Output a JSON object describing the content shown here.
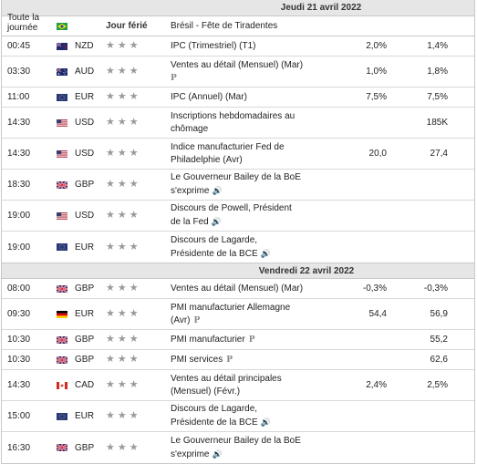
{
  "days": [
    {
      "date_label": "Jeudi 21 avril 2022",
      "all_day": {
        "time": "Toute la journée",
        "flag": "BR",
        "importance_label": "Jour férié",
        "event": "Brésil - Fête de Tiradentes"
      },
      "events": [
        {
          "time": "00:45",
          "flag": "NZ",
          "currency": "NZD",
          "event": [
            "IPC (Trimestriel) (T1)"
          ],
          "actual": "2,0%",
          "forecast": "1,4%",
          "previous": "",
          "badge": ""
        },
        {
          "time": "03:30",
          "flag": "AU",
          "currency": "AUD",
          "event": [
            "Ventes au détail (Mensuel) (Mar)"
          ],
          "actual": "1,0%",
          "forecast": "1,8%",
          "previous": "",
          "badge": "P"
        },
        {
          "time": "11:00",
          "flag": "EU",
          "currency": "EUR",
          "event": [
            "IPC (Annuel) (Mar)"
          ],
          "actual": "7,5%",
          "forecast": "7,5%",
          "previous": "",
          "badge": ""
        },
        {
          "time": "14:30",
          "flag": "US",
          "currency": "USD",
          "event": [
            "Inscriptions hebdomadaires au",
            "chômage"
          ],
          "actual": "",
          "forecast": "185K",
          "previous": "",
          "badge": ""
        },
        {
          "time": "14:30",
          "flag": "US",
          "currency": "USD",
          "event": [
            "Indice manufacturier Fed de",
            "Philadelphie (Avr)"
          ],
          "actual": "20,0",
          "forecast": "27,4",
          "previous": "",
          "badge": ""
        },
        {
          "time": "18:30",
          "flag": "GB",
          "currency": "GBP",
          "event": [
            "Le Gouverneur Bailey de la BoE",
            "s'exprime"
          ],
          "actual": "",
          "forecast": "",
          "previous": "",
          "badge": "speech"
        },
        {
          "time": "19:00",
          "flag": "US",
          "currency": "USD",
          "event": [
            "Discours de Powell, Président",
            "de la Fed"
          ],
          "actual": "",
          "forecast": "",
          "previous": "",
          "badge": "speech"
        },
        {
          "time": "19:00",
          "flag": "EU",
          "currency": "EUR",
          "event": [
            "Discours de Lagarde,",
            "Présidente de la BCE"
          ],
          "actual": "",
          "forecast": "",
          "previous": "",
          "badge": "speech"
        }
      ]
    },
    {
      "date_label": "Vendredi 22 avril 2022",
      "events": [
        {
          "time": "08:00",
          "flag": "GB",
          "currency": "GBP",
          "event": [
            "Ventes au détail (Mensuel) (Mar)"
          ],
          "actual": "-0,3%",
          "forecast": "-0,3%",
          "previous": "",
          "badge": ""
        },
        {
          "time": "09:30",
          "flag": "DE",
          "currency": "EUR",
          "event": [
            "PMI manufacturier Allemagne",
            "(Avr)"
          ],
          "actual": "54,4",
          "forecast": "56,9",
          "previous": "",
          "badge": "P"
        },
        {
          "time": "10:30",
          "flag": "GB",
          "currency": "GBP",
          "event": [
            "PMI manufacturier"
          ],
          "actual": "",
          "forecast": "55,2",
          "previous": "",
          "badge": "P"
        },
        {
          "time": "10:30",
          "flag": "GB",
          "currency": "GBP",
          "event": [
            "PMI services"
          ],
          "actual": "",
          "forecast": "62,6",
          "previous": "",
          "badge": "P"
        },
        {
          "time": "14:30",
          "flag": "CA",
          "currency": "CAD",
          "event": [
            "Ventes au détail principales",
            "(Mensuel) (Févr.)"
          ],
          "actual": "2,4%",
          "forecast": "2,5%",
          "previous": "",
          "badge": ""
        },
        {
          "time": "15:00",
          "flag": "EU",
          "currency": "EUR",
          "event": [
            "Discours de Lagarde,",
            "Présidente de la BCE"
          ],
          "actual": "",
          "forecast": "",
          "previous": "",
          "badge": "speech"
        },
        {
          "time": "16:30",
          "flag": "GB",
          "currency": "GBP",
          "event": [
            "Le Gouverneur Bailey de la BoE",
            "s'exprime"
          ],
          "actual": "",
          "forecast": "",
          "previous": "",
          "badge": "speech"
        }
      ]
    }
  ],
  "icons": {
    "star": "star-icon",
    "speech": "speaker-icon",
    "preliminary": "p-badge"
  },
  "colors": {
    "header_bg": "#e6e6e6",
    "star": "#9a9a9a",
    "border": "#c9c9c9"
  }
}
